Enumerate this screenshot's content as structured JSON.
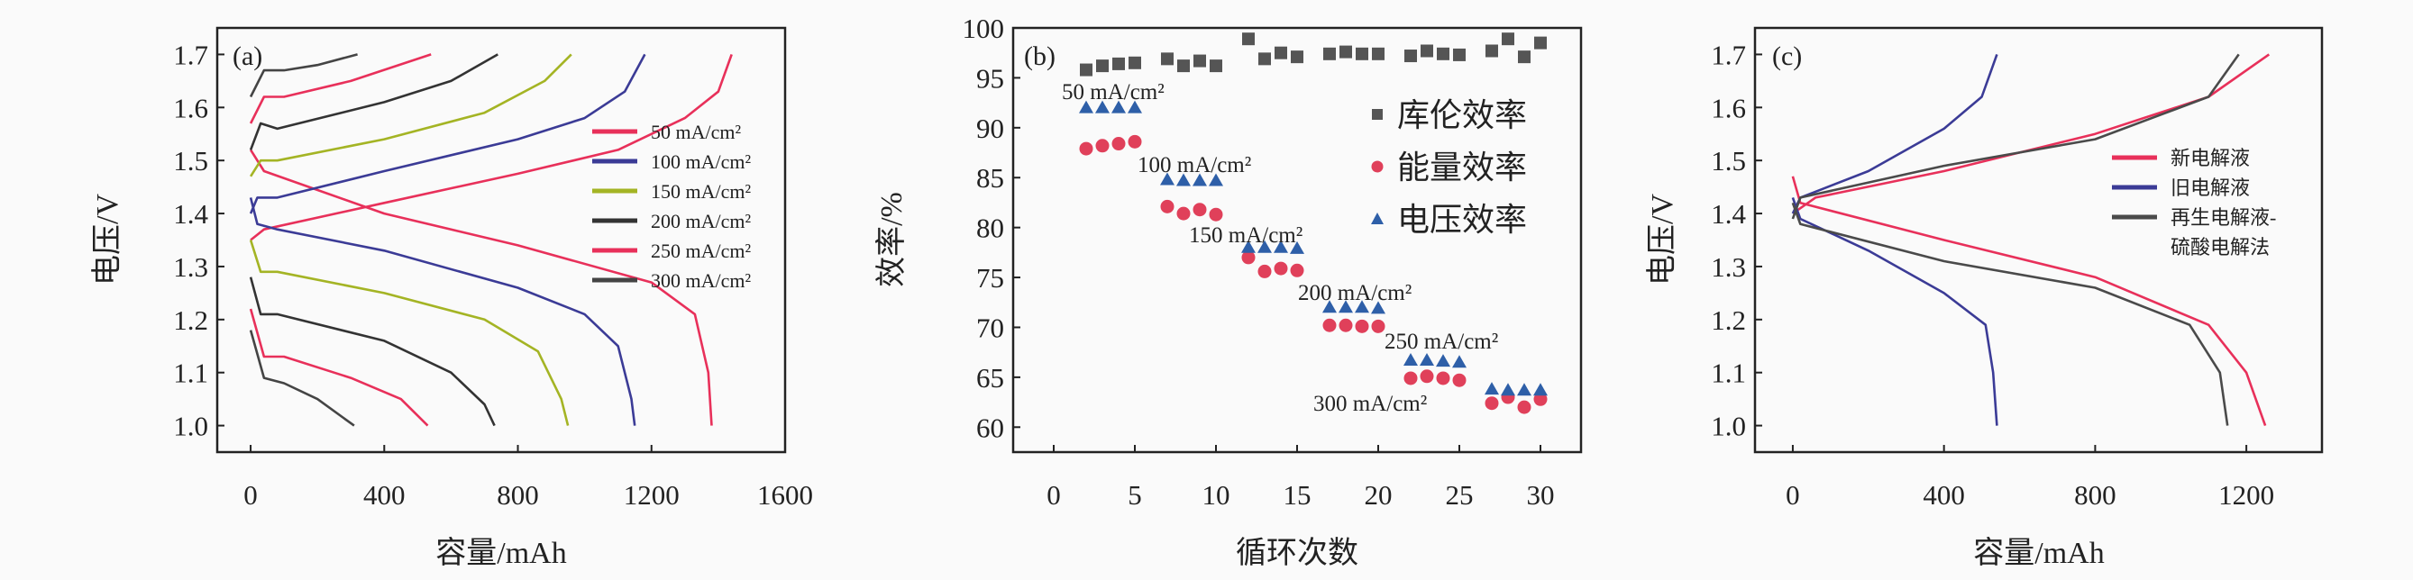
{
  "chart_data": [
    {
      "panel_label": "(a)",
      "type": "line",
      "xlabel": "容量/mAh",
      "ylabel": "电压/V",
      "xlim": [
        -100,
        1600
      ],
      "ylim": [
        0.95,
        1.75
      ],
      "xticks": [
        "0",
        "400",
        "800",
        "1200",
        "1600"
      ],
      "yticks": [
        "1.0",
        "1.1",
        "1.2",
        "1.3",
        "1.4",
        "1.5",
        "1.6",
        "1.7"
      ],
      "legend_position": "right",
      "series": [
        {
          "name": "50 mA/cm²",
          "color": "#e8305a",
          "charge": [
            [
              0,
              1.35
            ],
            [
              40,
              1.37
            ],
            [
              400,
              1.42
            ],
            [
              800,
              1.475
            ],
            [
              1100,
              1.52
            ],
            [
              1300,
              1.58
            ],
            [
              1400,
              1.63
            ],
            [
              1440,
              1.7
            ]
          ],
          "discharge": [
            [
              0,
              1.52
            ],
            [
              40,
              1.48
            ],
            [
              400,
              1.4
            ],
            [
              800,
              1.34
            ],
            [
              1200,
              1.27
            ],
            [
              1330,
              1.21
            ],
            [
              1370,
              1.1
            ],
            [
              1380,
              1.0
            ]
          ]
        },
        {
          "name": "100 mA/cm²",
          "color": "#3b3b96",
          "charge": [
            [
              0,
              1.4
            ],
            [
              20,
              1.43
            ],
            [
              80,
              1.43
            ],
            [
              400,
              1.48
            ],
            [
              800,
              1.54
            ],
            [
              1000,
              1.58
            ],
            [
              1120,
              1.63
            ],
            [
              1180,
              1.7
            ]
          ],
          "discharge": [
            [
              0,
              1.43
            ],
            [
              20,
              1.38
            ],
            [
              80,
              1.37
            ],
            [
              400,
              1.33
            ],
            [
              800,
              1.26
            ],
            [
              1000,
              1.21
            ],
            [
              1100,
              1.15
            ],
            [
              1140,
              1.05
            ],
            [
              1150,
              1.0
            ]
          ]
        },
        {
          "name": "150 mA/cm²",
          "color": "#a4b424",
          "charge": [
            [
              0,
              1.47
            ],
            [
              30,
              1.5
            ],
            [
              80,
              1.5
            ],
            [
              400,
              1.54
            ],
            [
              700,
              1.59
            ],
            [
              880,
              1.65
            ],
            [
              960,
              1.7
            ]
          ],
          "discharge": [
            [
              0,
              1.35
            ],
            [
              30,
              1.29
            ],
            [
              80,
              1.29
            ],
            [
              400,
              1.25
            ],
            [
              700,
              1.2
            ],
            [
              860,
              1.14
            ],
            [
              930,
              1.05
            ],
            [
              950,
              1.0
            ]
          ]
        },
        {
          "name": "200 mA/cm²",
          "color": "#333333",
          "charge": [
            [
              0,
              1.52
            ],
            [
              30,
              1.57
            ],
            [
              80,
              1.56
            ],
            [
              400,
              1.61
            ],
            [
              600,
              1.65
            ],
            [
              740,
              1.7
            ]
          ],
          "discharge": [
            [
              0,
              1.28
            ],
            [
              30,
              1.21
            ],
            [
              80,
              1.21
            ],
            [
              400,
              1.16
            ],
            [
              600,
              1.1
            ],
            [
              700,
              1.04
            ],
            [
              730,
              1.0
            ]
          ]
        },
        {
          "name": "250 mA/cm²",
          "color": "#e8305a",
          "charge": [
            [
              0,
              1.57
            ],
            [
              40,
              1.62
            ],
            [
              100,
              1.62
            ],
            [
              300,
              1.65
            ],
            [
              540,
              1.7
            ]
          ],
          "discharge": [
            [
              0,
              1.22
            ],
            [
              40,
              1.13
            ],
            [
              100,
              1.13
            ],
            [
              300,
              1.09
            ],
            [
              450,
              1.05
            ],
            [
              530,
              1.0
            ]
          ]
        },
        {
          "name": "300 mA/cm²",
          "color": "#444444",
          "charge": [
            [
              0,
              1.62
            ],
            [
              40,
              1.67
            ],
            [
              100,
              1.67
            ],
            [
              200,
              1.68
            ],
            [
              320,
              1.7
            ]
          ],
          "discharge": [
            [
              0,
              1.18
            ],
            [
              40,
              1.09
            ],
            [
              100,
              1.08
            ],
            [
              200,
              1.05
            ],
            [
              310,
              1.0
            ]
          ]
        }
      ]
    },
    {
      "panel_label": "(b)",
      "type": "scatter",
      "xlabel": "循环次数",
      "ylabel": "效率/%",
      "xlim": [
        -2.5,
        32.5
      ],
      "ylim": [
        57.5,
        100
      ],
      "xticks": [
        "0",
        "5",
        "10",
        "15",
        "20",
        "25",
        "30"
      ],
      "yticks": [
        "60",
        "65",
        "70",
        "75",
        "80",
        "85",
        "90",
        "95",
        "100"
      ],
      "legend_position": "right",
      "x": [
        2,
        3,
        4,
        5,
        7,
        8,
        9,
        10,
        12,
        13,
        14,
        15,
        17,
        18,
        19,
        20,
        22,
        23,
        24,
        25,
        27,
        28,
        29,
        30
      ],
      "series": [
        {
          "name": "库伦效率",
          "marker": "square",
          "color": "#555555",
          "values": [
            95.8,
            96.2,
            96.4,
            96.5,
            96.9,
            96.2,
            96.7,
            96.2,
            98.9,
            96.9,
            97.5,
            97.1,
            97.4,
            97.6,
            97.4,
            97.4,
            97.2,
            97.7,
            97.4,
            97.3,
            97.7,
            98.9,
            97.1,
            98.5
          ]
        },
        {
          "name": "能量效率",
          "marker": "circle",
          "color": "#e0405a",
          "values": [
            87.9,
            88.2,
            88.4,
            88.6,
            82.1,
            81.4,
            81.8,
            81.3,
            77.0,
            75.6,
            75.9,
            75.7,
            70.2,
            70.2,
            70.1,
            70.1,
            64.9,
            65.1,
            64.9,
            64.7,
            62.4,
            63.0,
            62.0,
            62.8
          ]
        },
        {
          "name": "电压效率",
          "marker": "triangle",
          "color": "#2e5fa8",
          "values": [
            92,
            92,
            92,
            92,
            84.8,
            84.7,
            84.7,
            84.7,
            78,
            78,
            78,
            77.9,
            72,
            72,
            72,
            71.9,
            66.7,
            66.7,
            66.6,
            66.5,
            63.8,
            63.7,
            63.7,
            63.7
          ]
        }
      ],
      "annotations": [
        "50 mA/cm²",
        "100 mA/cm²",
        "150 mA/cm²",
        "200 mA/cm²",
        "250 mA/cm²",
        "300 mA/cm²"
      ]
    },
    {
      "panel_label": "(c)",
      "type": "line",
      "xlabel": "容量/mAh",
      "ylabel": "电压/V",
      "xlim": [
        -100,
        1400
      ],
      "ylim": [
        0.95,
        1.75
      ],
      "xticks": [
        "0",
        "400",
        "800",
        "1200"
      ],
      "yticks": [
        "1.0",
        "1.1",
        "1.2",
        "1.3",
        "1.4",
        "1.5",
        "1.6",
        "1.7"
      ],
      "legend_position": "right",
      "series": [
        {
          "name": "新电解液",
          "color": "#e8305a",
          "charge": [
            [
              0,
              1.4
            ],
            [
              60,
              1.43
            ],
            [
              400,
              1.48
            ],
            [
              800,
              1.55
            ],
            [
              1100,
              1.62
            ],
            [
              1260,
              1.7
            ]
          ],
          "discharge": [
            [
              0,
              1.47
            ],
            [
              20,
              1.42
            ],
            [
              400,
              1.35
            ],
            [
              800,
              1.28
            ],
            [
              1100,
              1.19
            ],
            [
              1200,
              1.1
            ],
            [
              1250,
              1.0
            ]
          ]
        },
        {
          "name": "旧电解液",
          "color": "#3b3b96",
          "charge": [
            [
              0,
              1.4
            ],
            [
              20,
              1.43
            ],
            [
              200,
              1.48
            ],
            [
              400,
              1.56
            ],
            [
              500,
              1.62
            ],
            [
              540,
              1.7
            ]
          ],
          "discharge": [
            [
              0,
              1.43
            ],
            [
              20,
              1.39
            ],
            [
              200,
              1.33
            ],
            [
              400,
              1.25
            ],
            [
              510,
              1.19
            ],
            [
              530,
              1.1
            ],
            [
              540,
              1.0
            ]
          ]
        },
        {
          "name": "再生电解液-硫酸电解法",
          "legend_lines": [
            "再生电解液-",
            "硫酸电解法"
          ],
          "color": "#4a4a4a",
          "charge": [
            [
              0,
              1.39
            ],
            [
              20,
              1.43
            ],
            [
              400,
              1.49
            ],
            [
              800,
              1.54
            ],
            [
              1100,
              1.62
            ],
            [
              1180,
              1.7
            ]
          ],
          "discharge": [
            [
              0,
              1.42
            ],
            [
              20,
              1.38
            ],
            [
              400,
              1.31
            ],
            [
              800,
              1.26
            ],
            [
              1050,
              1.19
            ],
            [
              1130,
              1.1
            ],
            [
              1150,
              1.0
            ]
          ]
        }
      ]
    }
  ]
}
